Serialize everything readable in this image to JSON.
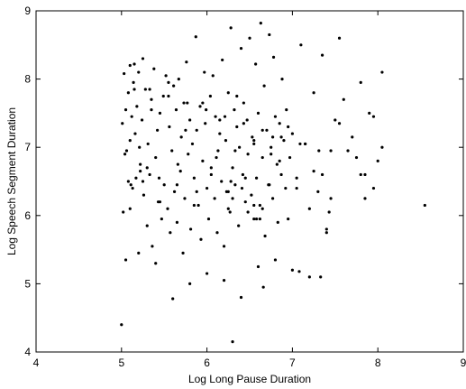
{
  "chart_data": {
    "type": "scatter",
    "title": "",
    "xlabel": "Log Long Pause Duration",
    "ylabel": "Log Speech Segment Duration",
    "xlim": [
      4,
      9
    ],
    "ylim": [
      4,
      9
    ],
    "xticks": [
      "4",
      "5",
      "6",
      "7",
      "8",
      "9"
    ],
    "yticks": [
      "4",
      "5",
      "6",
      "7",
      "8",
      "9"
    ],
    "grid": false,
    "legend": false,
    "marker_color": "#000000",
    "series": [
      {
        "x": [
          5.01,
          5.02,
          5.03,
          5.04,
          5.05,
          5.06,
          5.08,
          5.08,
          5.1,
          5.1,
          5.12,
          5.13,
          5.14,
          5.15,
          5.16,
          5.17,
          5.18,
          5.2,
          5.21,
          5.22,
          5.24,
          5.25,
          5.26,
          5.28,
          5.3,
          5.31,
          5.33,
          5.35,
          5.36,
          5.38,
          5.4,
          5.42,
          5.43,
          5.45,
          5.47,
          5.49,
          5.5,
          5.52,
          5.54,
          5.56,
          5.57,
          5.59,
          5.61,
          5.62,
          5.64,
          5.65,
          5.67,
          5.69,
          5.7,
          5.72,
          5.73,
          5.74,
          5.76,
          5.78,
          5.8,
          5.81,
          5.83,
          5.85,
          5.87,
          5.88,
          5.9,
          5.92,
          5.93,
          5.95,
          5.97,
          5.98,
          6.0,
          6.02,
          6.04,
          6.05,
          6.07,
          6.09,
          6.1,
          6.12,
          6.13,
          6.15,
          6.17,
          6.18,
          6.2,
          6.22,
          6.23,
          6.25,
          6.27,
          6.28,
          6.3,
          6.32,
          6.33,
          6.35,
          6.37,
          6.38,
          6.4,
          6.42,
          6.43,
          6.45,
          6.47,
          6.48,
          6.5,
          6.52,
          6.53,
          6.55,
          6.57,
          6.58,
          6.6,
          6.62,
          6.63,
          6.65,
          6.67,
          6.68,
          6.7,
          6.72,
          6.73,
          6.75,
          6.77,
          6.78,
          6.8,
          6.82,
          6.83,
          6.85,
          6.87,
          6.88,
          6.9,
          6.92,
          6.93,
          6.95,
          6.97,
          7.0,
          7.05,
          7.1,
          7.15,
          7.2,
          7.25,
          7.3,
          7.35,
          7.4,
          7.45,
          7.5,
          7.55,
          7.6,
          7.8,
          7.85,
          7.9,
          7.95,
          8.0,
          8.05,
          5.0,
          5.1,
          5.3,
          6.3,
          8.55,
          5.05,
          5.2,
          5.4,
          5.6,
          5.8,
          6.0,
          6.2,
          6.4,
          6.6,
          6.8,
          7.0,
          7.2,
          7.4,
          5.15,
          5.35,
          5.55,
          5.75,
          5.95,
          6.15,
          6.35,
          6.55,
          6.75,
          6.95,
          7.15,
          7.35,
          7.55,
          7.75,
          7.95,
          5.25,
          5.45,
          5.65,
          5.85,
          6.05,
          6.25,
          6.45,
          6.65,
          6.85,
          7.05,
          7.25,
          7.45,
          7.65,
          7.85,
          8.05,
          6.62,
          6.66,
          6.25,
          6.58,
          6.73,
          6.48,
          6.41,
          6.55,
          6.3,
          6.28,
          7.08,
          7.33,
          7.43,
          7.7,
          7.8,
          5.11,
          5.22,
          5.44,
          5.66,
          5.88,
          6.11,
          6.33,
          6.55,
          6.77,
          5.33,
          5.55,
          5.77,
          5.99,
          6.21,
          6.43,
          6.65,
          6.87,
          7.09,
          7.31
        ],
        "y": [
          7.35,
          6.05,
          8.08,
          6.9,
          7.55,
          6.95,
          7.8,
          6.5,
          8.2,
          7.1,
          7.45,
          6.4,
          7.95,
          8.22,
          7.2,
          6.55,
          7.6,
          8.1,
          7.0,
          6.75,
          7.4,
          8.3,
          6.3,
          7.85,
          5.85,
          7.05,
          6.6,
          7.7,
          5.55,
          8.15,
          6.85,
          7.25,
          6.2,
          7.5,
          5.95,
          7.75,
          6.45,
          8.05,
          6.1,
          7.3,
          5.75,
          6.95,
          7.9,
          6.35,
          7.55,
          5.9,
          8.0,
          6.65,
          7.15,
          5.45,
          7.65,
          6.25,
          8.25,
          6.9,
          7.4,
          5.8,
          7.05,
          6.55,
          8.62,
          7.25,
          6.15,
          7.6,
          5.65,
          6.8,
          8.1,
          7.35,
          6.4,
          5.95,
          7.75,
          6.6,
          8.05,
          6.25,
          7.45,
          5.75,
          6.95,
          7.2,
          6.5,
          8.28,
          5.55,
          7.1,
          6.35,
          7.8,
          6.05,
          8.75,
          6.7,
          7.55,
          6.45,
          7.3,
          5.85,
          7.0,
          8.45,
          6.6,
          7.65,
          6.2,
          7.4,
          6.9,
          8.6,
          6.3,
          7.15,
          5.95,
          8.22,
          6.55,
          7.5,
          6.15,
          8.82,
          6.85,
          7.9,
          5.7,
          7.25,
          6.45,
          8.65,
          7.0,
          6.25,
          8.32,
          7.45,
          6.75,
          5.9,
          7.35,
          6.6,
          8.0,
          7.1,
          6.4,
          7.55,
          5.95,
          6.85,
          7.2,
          6.55,
          8.5,
          7.05,
          6.1,
          7.8,
          6.35,
          8.35,
          5.8,
          6.95,
          7.4,
          8.6,
          7.7,
          7.95,
          6.25,
          7.5,
          6.4,
          6.8,
          8.1,
          4.4,
          6.1,
          6.7,
          4.15,
          6.15,
          5.35,
          5.45,
          5.3,
          4.78,
          5.0,
          5.15,
          5.05,
          4.8,
          5.25,
          5.35,
          5.2,
          5.1,
          5.75,
          7.85,
          7.55,
          7.95,
          7.25,
          7.65,
          7.4,
          7.75,
          7.1,
          6.9,
          7.3,
          7.05,
          6.6,
          7.35,
          6.85,
          7.45,
          6.5,
          6.2,
          6.45,
          6.15,
          6.7,
          6.35,
          6.55,
          6.1,
          6.8,
          6.4,
          6.65,
          6.25,
          6.95,
          6.6,
          7.0,
          5.95,
          4.95,
          6.1,
          5.95,
          6.45,
          6.05,
          6.4,
          6.15,
          6.25,
          6.5,
          5.18,
          5.1,
          6.05,
          7.15,
          6.6,
          6.45,
          6.65,
          6.55,
          6.75,
          6.35,
          6.85,
          6.95,
          7.05,
          7.15,
          7.85,
          7.75,
          7.65,
          7.55,
          7.45,
          7.35,
          7.25,
          7.15,
          7.05,
          6.95
        ]
      }
    ]
  }
}
